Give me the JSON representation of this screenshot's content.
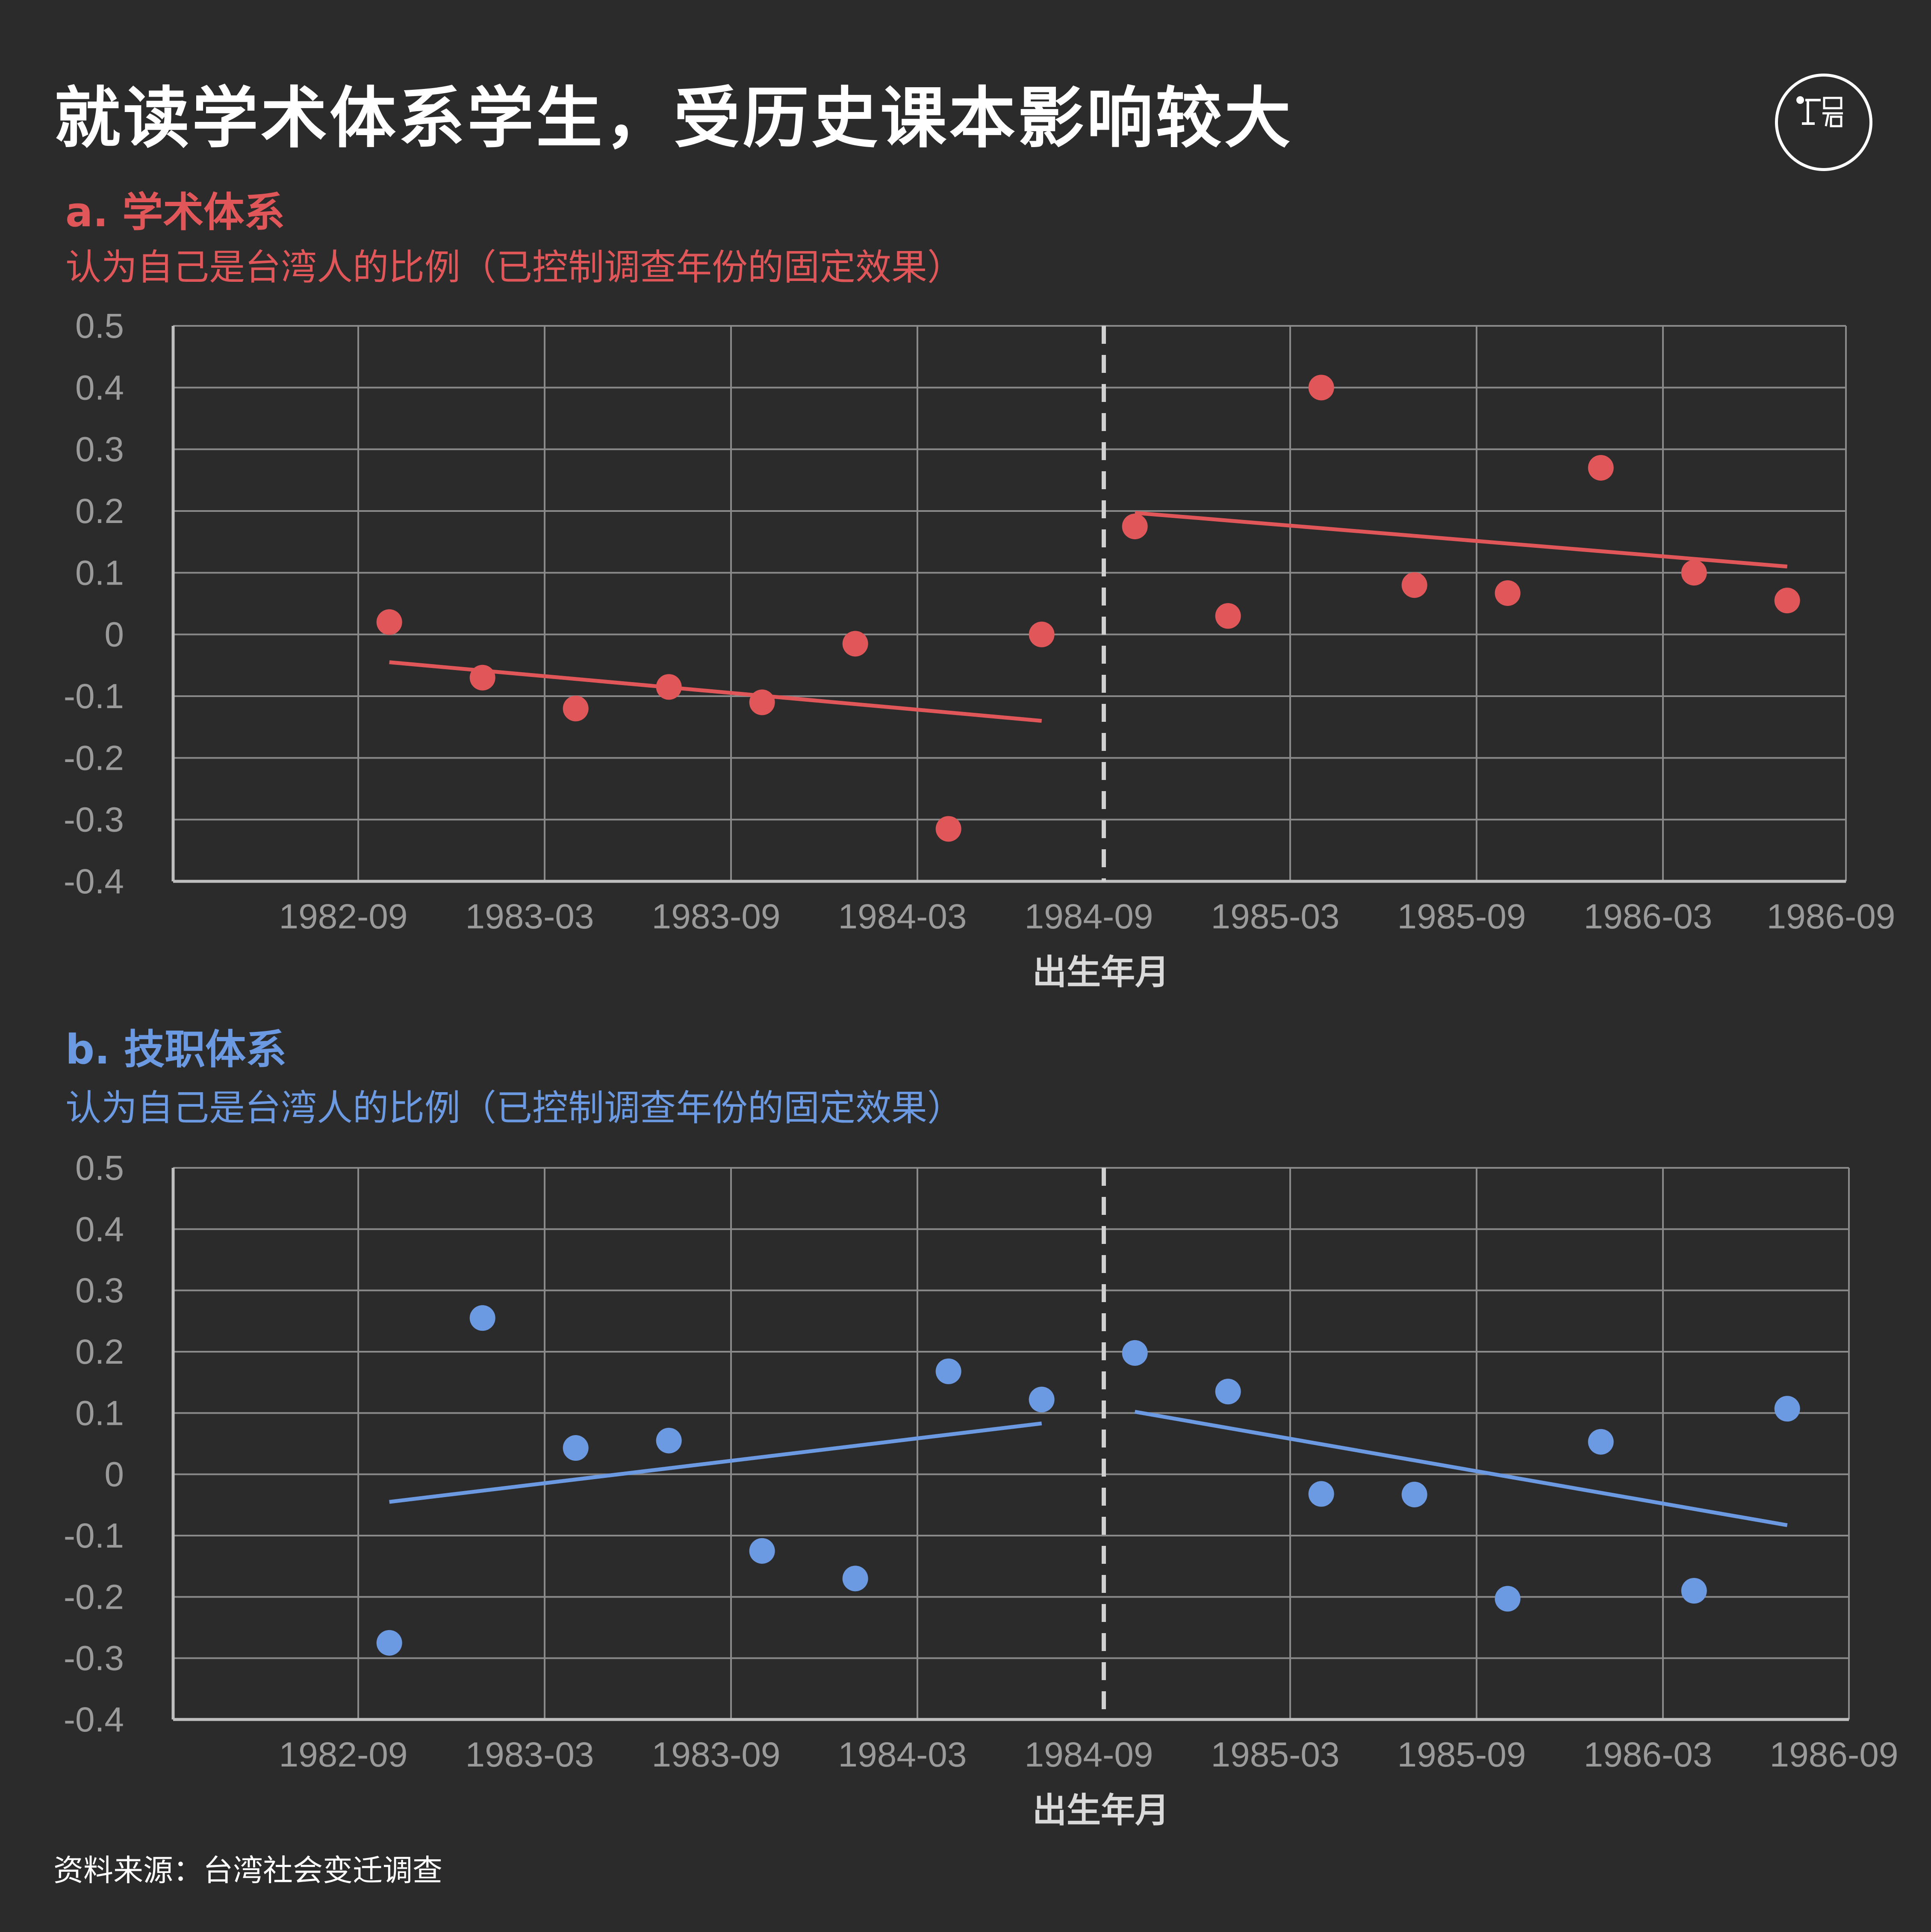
{
  "title": "就读学术体系学生，受历史课本影响较大",
  "source": "资料来源：台湾社会变迁调查",
  "colors": {
    "background": "#2b2b2b",
    "panel_a": "#e15759",
    "panel_b": "#6b9ae2",
    "grid": "#8a8a8a",
    "axis": "#bfbfbf"
  },
  "logo": {
    "icon": "initium-media-logo"
  },
  "panels": [
    {
      "label": "a. 学术体系",
      "subtitle": "认为自己是台湾人的比例（已控制调查年份的固定效果）",
      "xlabel": "出生年月"
    },
    {
      "label": "b. 技职体系",
      "subtitle": "认为自己是台湾人的比例（已控制调查年份的固定效果）",
      "xlabel": "出生年月"
    }
  ],
  "chart_data": [
    {
      "type": "scatter",
      "x_tick_labels": [
        "1982-09",
        "1983-03",
        "1983-09",
        "1984-03",
        "1984-09",
        "1985-03",
        "1985-09",
        "1986-03",
        "1986-09"
      ],
      "y_tick_labels": [
        "0.5",
        "0.4",
        "0.3",
        "0.2",
        "0.1",
        "0",
        "-0.1",
        "-0.2",
        "-0.3",
        "-0.4"
      ],
      "ylim": [
        -0.4,
        0.5
      ],
      "grid": true,
      "cutoff": "1984-09",
      "series": [
        {
          "x": [
            "1982-10",
            "1983-01",
            "1983-04",
            "1983-07",
            "1983-10",
            "1984-01",
            "1984-04",
            "1984-07",
            "1984-10",
            "1985-01",
            "1985-04",
            "1985-07",
            "1985-10",
            "1986-01",
            "1986-04",
            "1986-07"
          ],
          "values": [
            0.02,
            -0.07,
            -0.12,
            -0.085,
            -0.11,
            -0.015,
            -0.315,
            0.0,
            0.175,
            0.03,
            0.4,
            0.08,
            0.067,
            0.27,
            0.1,
            0.055
          ]
        }
      ],
      "trend_lines": [
        {
          "x": [
            "1982-10",
            "1984-07"
          ],
          "values": [
            -0.045,
            -0.14
          ]
        },
        {
          "x": [
            "1984-10",
            "1986-07"
          ],
          "values": [
            0.197,
            0.11
          ]
        }
      ]
    },
    {
      "type": "scatter",
      "x_tick_labels": [
        "1982-09",
        "1983-03",
        "1983-09",
        "1984-03",
        "1984-09",
        "1985-03",
        "1985-09",
        "1986-03",
        "1986-09"
      ],
      "y_tick_labels": [
        "0.5",
        "0.4",
        "0.3",
        "0.2",
        "0.1",
        "0",
        "-0.1",
        "-0.2",
        "-0.3",
        "-0.4"
      ],
      "ylim": [
        -0.4,
        0.5
      ],
      "grid": true,
      "cutoff": "1984-09",
      "series": [
        {
          "x": [
            "1982-10",
            "1983-01",
            "1983-04",
            "1983-07",
            "1983-10",
            "1984-01",
            "1984-04",
            "1984-07",
            "1984-10",
            "1985-01",
            "1985-04",
            "1985-07",
            "1985-10",
            "1986-01",
            "1986-04",
            "1986-07"
          ],
          "values": [
            -0.275,
            0.255,
            0.043,
            0.055,
            -0.125,
            -0.17,
            0.168,
            0.122,
            0.198,
            0.135,
            -0.032,
            -0.033,
            -0.203,
            0.053,
            -0.19,
            0.107
          ]
        }
      ],
      "trend_lines": [
        {
          "x": [
            "1982-10",
            "1984-07"
          ],
          "values": [
            -0.045,
            0.083
          ]
        },
        {
          "x": [
            "1984-10",
            "1986-07"
          ],
          "values": [
            0.102,
            -0.083
          ]
        }
      ]
    }
  ]
}
